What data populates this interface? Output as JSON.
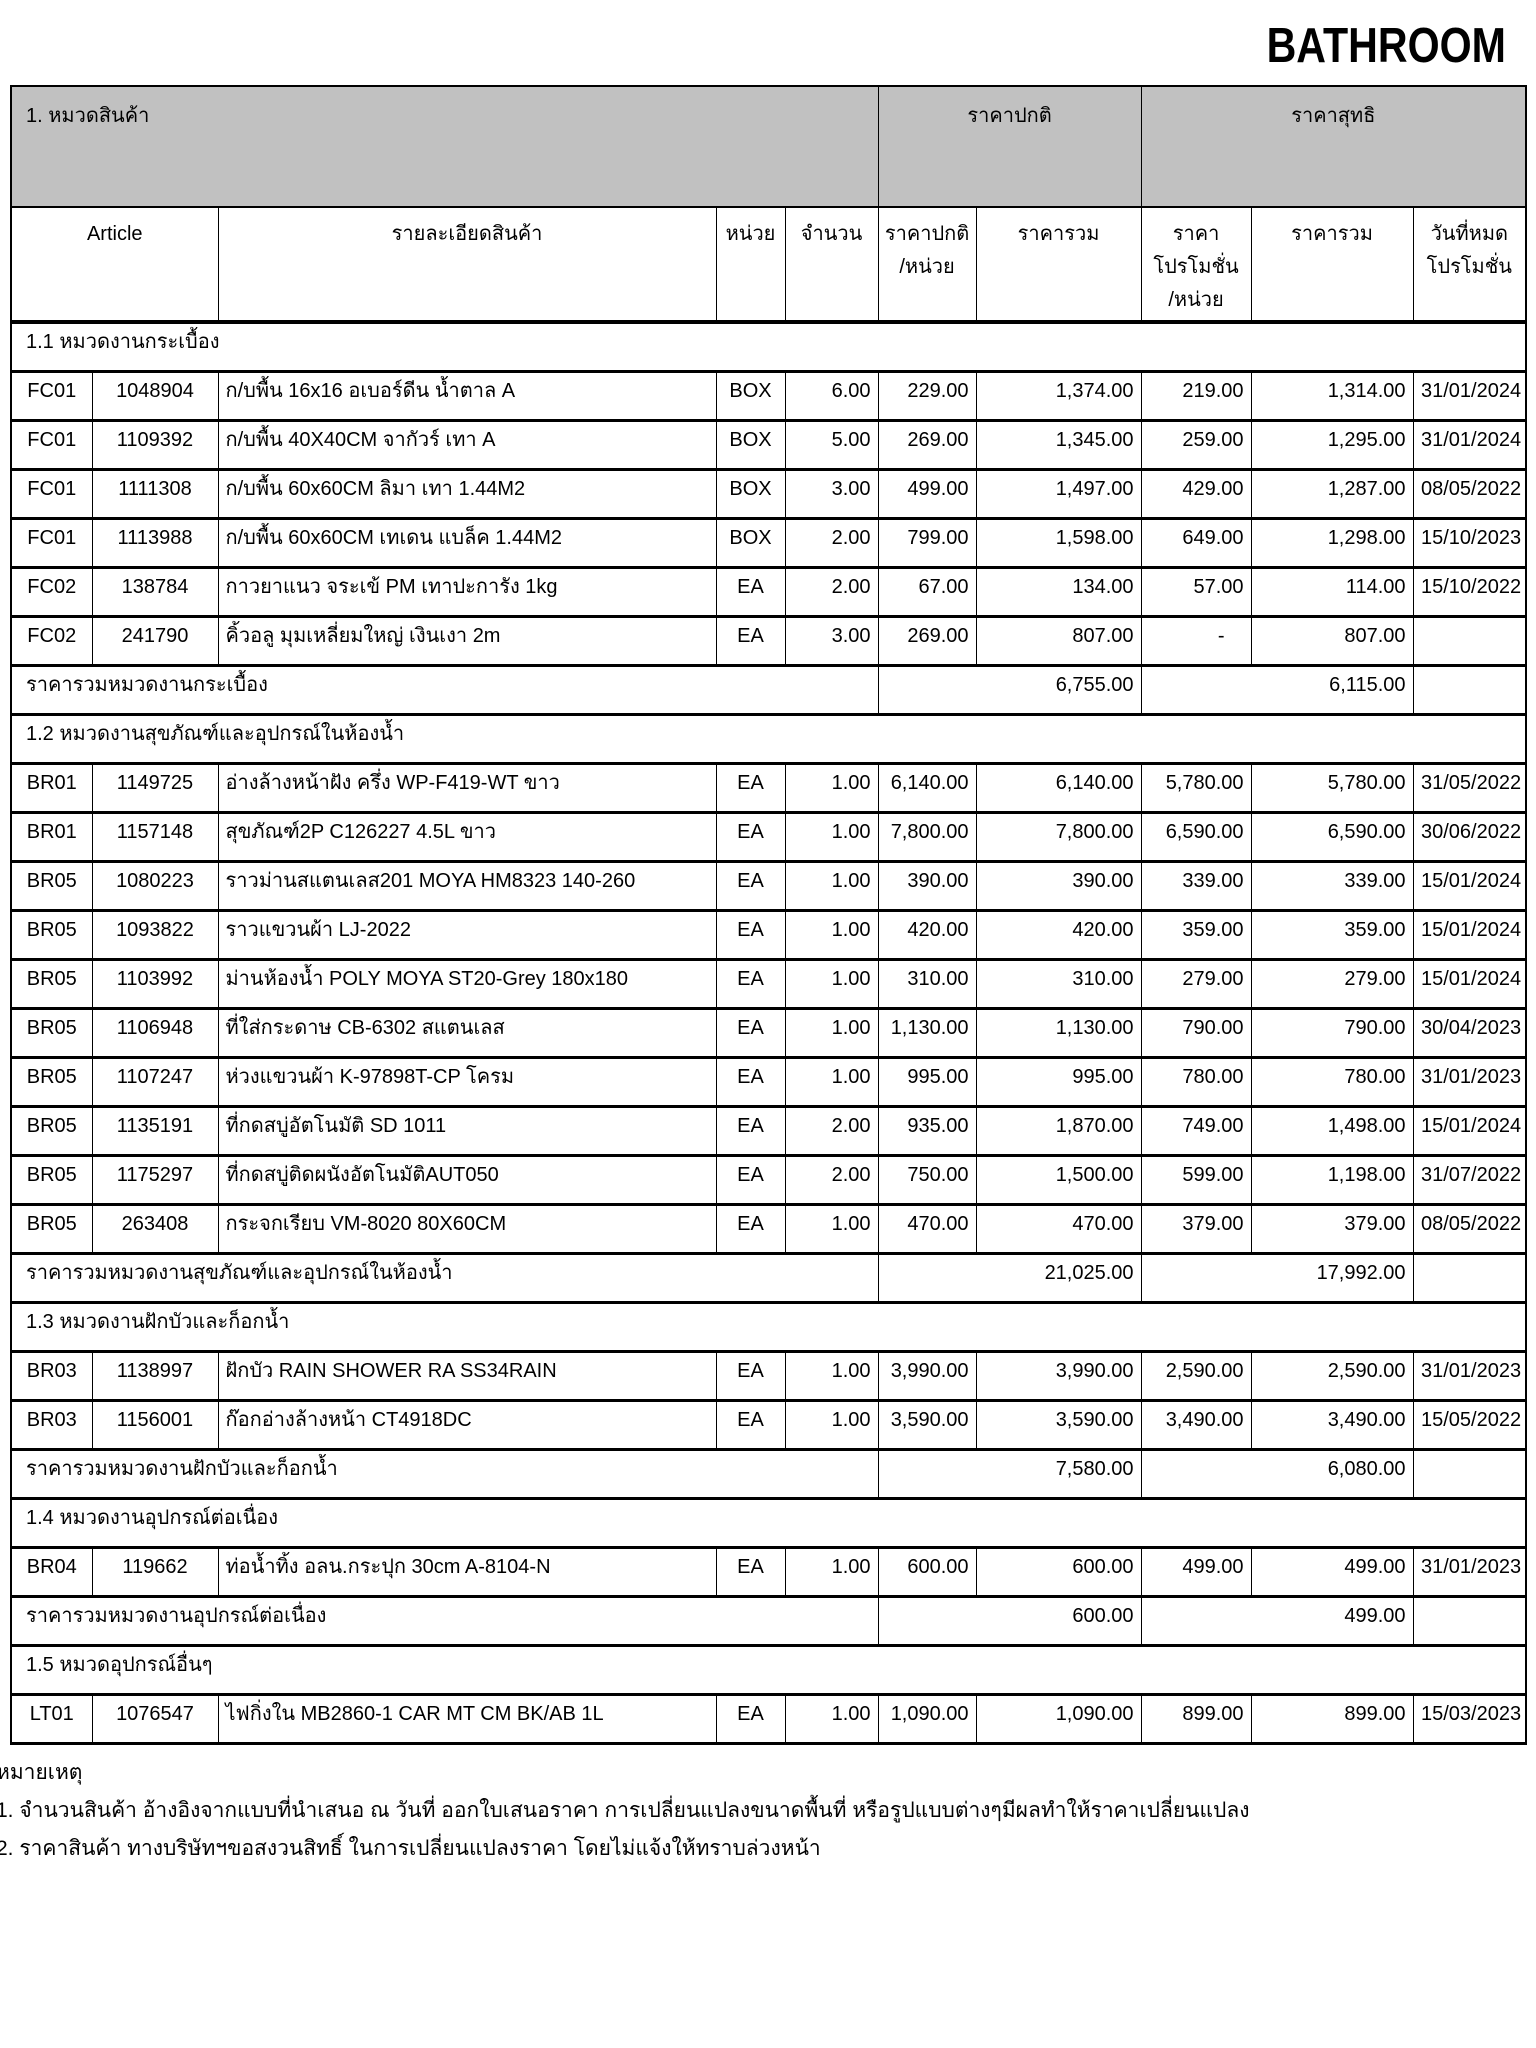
{
  "page_title": "BATHROOM",
  "table": {
    "group_header": {
      "category": "1. หมวดสินค้า",
      "normal_price": "ราคาปกติ",
      "net_price": "ราคาสุทธิ"
    },
    "columns": [
      "Article",
      "รายละเอียดสินค้า",
      "หน่วย",
      "จำนวน",
      "ราคาปกติ\n/หน่วย",
      "ราคารวม",
      "ราคา\nโปรโมชั่น\n/หน่วย",
      "ราคารวม",
      "วันที่หมด\nโปรโมชั่น"
    ],
    "sections": [
      {
        "title": "1.1 หมวดงานกระเบื้อง",
        "rows": [
          [
            "FC01",
            "1048904",
            "ก/บพื้น 16x16 อเบอร์ดีน น้ำตาล A",
            "BOX",
            "6.00",
            "229.00",
            "1,374.00",
            "219.00",
            "1,314.00",
            "31/01/2024"
          ],
          [
            "FC01",
            "1109392",
            "ก/บพื้น 40X40CM จากัวร์ เทา A",
            "BOX",
            "5.00",
            "269.00",
            "1,345.00",
            "259.00",
            "1,295.00",
            "31/01/2024"
          ],
          [
            "FC01",
            "1111308",
            "ก/บพื้น 60x60CM ลิมา เทา 1.44M2",
            "BOX",
            "3.00",
            "499.00",
            "1,497.00",
            "429.00",
            "1,287.00",
            "08/05/2022"
          ],
          [
            "FC01",
            "1113988",
            "ก/บพื้น 60x60CM เทเดน แบล็ค 1.44M2",
            "BOX",
            "2.00",
            "799.00",
            "1,598.00",
            "649.00",
            "1,298.00",
            "15/10/2023"
          ],
          [
            "FC02",
            "138784",
            "กาวยาแนว จระเข้ PM เทาปะการัง 1kg",
            "EA",
            "2.00",
            "67.00",
            "134.00",
            "57.00",
            "114.00",
            "15/10/2022"
          ],
          [
            "FC02",
            "241790",
            "คิ้วอลู มุมเหลี่ยมใหญ่ เงินเงา 2m",
            "EA",
            "3.00",
            "269.00",
            "807.00",
            "-",
            "807.00",
            ""
          ]
        ],
        "summary": {
          "label": "ราคารวมหมวดงานกระเบื้อง",
          "normal_total": "6,755.00",
          "net_total": "6,115.00"
        }
      },
      {
        "title": "1.2 หมวดงานสุขภัณฑ์และอุปกรณ์ในห้องน้ำ",
        "rows": [
          [
            "BR01",
            "1149725",
            "อ่างล้างหน้าฝัง ครึ่ง WP-F419-WT ขาว",
            "EA",
            "1.00",
            "6,140.00",
            "6,140.00",
            "5,780.00",
            "5,780.00",
            "31/05/2022"
          ],
          [
            "BR01",
            "1157148",
            "สุขภัณฑ์2P C126227 4.5L ขาว",
            "EA",
            "1.00",
            "7,800.00",
            "7,800.00",
            "6,590.00",
            "6,590.00",
            "30/06/2022"
          ],
          [
            "BR05",
            "1080223",
            "ราวม่านสแตนเลส201 MOYA HM8323 140-260",
            "EA",
            "1.00",
            "390.00",
            "390.00",
            "339.00",
            "339.00",
            "15/01/2024"
          ],
          [
            "BR05",
            "1093822",
            "ราวแขวนผ้า LJ-2022",
            "EA",
            "1.00",
            "420.00",
            "420.00",
            "359.00",
            "359.00",
            "15/01/2024"
          ],
          [
            "BR05",
            "1103992",
            "ม่านห้องน้ำ POLY MOYA ST20-Grey 180x180",
            "EA",
            "1.00",
            "310.00",
            "310.00",
            "279.00",
            "279.00",
            "15/01/2024"
          ],
          [
            "BR05",
            "1106948",
            "ที่ใส่กระดาษ CB-6302 สแตนเลส",
            "EA",
            "1.00",
            "1,130.00",
            "1,130.00",
            "790.00",
            "790.00",
            "30/04/2023"
          ],
          [
            "BR05",
            "1107247",
            "ห่วงแขวนผ้า K-97898T-CP  โครม",
            "EA",
            "1.00",
            "995.00",
            "995.00",
            "780.00",
            "780.00",
            "31/01/2023"
          ],
          [
            "BR05",
            "1135191",
            "ที่กดสบู่อัตโนมัติ SD 1011",
            "EA",
            "2.00",
            "935.00",
            "1,870.00",
            "749.00",
            "1,498.00",
            "15/01/2024"
          ],
          [
            "BR05",
            "1175297",
            "ที่กดสบู่ติดผนังอัตโนมัติAUT050",
            "EA",
            "2.00",
            "750.00",
            "1,500.00",
            "599.00",
            "1,198.00",
            "31/07/2022"
          ],
          [
            "BR05",
            "263408",
            "กระจกเรียบ VM-8020 80X60CM",
            "EA",
            "1.00",
            "470.00",
            "470.00",
            "379.00",
            "379.00",
            "08/05/2022"
          ]
        ],
        "summary": {
          "label": "ราคารวมหมวดงานสุขภัณฑ์และอุปกรณ์ในห้องน้ำ",
          "normal_total": "21,025.00",
          "net_total": "17,992.00"
        }
      },
      {
        "title": "1.3 หมวดงานฝักบัวและก็อกน้ำ",
        "rows": [
          [
            "BR03",
            "1138997",
            "ฝักบัว RAIN SHOWER  RA SS34RAIN",
            "EA",
            "1.00",
            "3,990.00",
            "3,990.00",
            "2,590.00",
            "2,590.00",
            "31/01/2023"
          ],
          [
            "BR03",
            "1156001",
            "ก๊อกอ่างล้างหน้า CT4918DC",
            "EA",
            "1.00",
            "3,590.00",
            "3,590.00",
            "3,490.00",
            "3,490.00",
            "15/05/2022"
          ]
        ],
        "summary": {
          "label": "ราคารวมหมวดงานฝักบัวและก็อกน้ำ",
          "normal_total": "7,580.00",
          "net_total": "6,080.00"
        }
      },
      {
        "title": "1.4 หมวดงานอุปกรณ์ต่อเนื่อง",
        "rows": [
          [
            "BR04",
            "119662",
            "ท่อน้ำทิ้ง อลน.กระปุก 30cm A-8104-N",
            "EA",
            "1.00",
            "600.00",
            "600.00",
            "499.00",
            "499.00",
            "31/01/2023"
          ]
        ],
        "summary": {
          "label": "ราคารวมหมวดงานอุปกรณ์ต่อเนื่อง",
          "normal_total": "600.00",
          "net_total": "499.00"
        }
      },
      {
        "title": "1.5 หมวดอุปกรณ์อื่นๆ",
        "rows": [
          [
            "LT01",
            "1076547",
            "ไฟกิ่งใน MB2860-1 CAR MT CM BK/AB 1L",
            "EA",
            "1.00",
            "1,090.00",
            "1,090.00",
            "899.00",
            "899.00",
            "15/03/2023"
          ]
        ],
        "summary": null
      }
    ]
  },
  "notes": {
    "heading": "หมายเหตุ",
    "lines": [
      "1. จำนวนสินค้า อ้างอิงจากแบบที่นำเสนอ ณ วันที่ ออกใบเสนอราคา การเปลี่ยนแปลงขนาดพื้นที่ หรือรูปแบบต่างๆมีผลทำให้ราคาเปลี่ยนแปลง",
      "2. ราคาสินค้า ทางบริษัทฯขอสงวนสิทธิ์ ในการเปลี่ยนแปลงราคา โดยไม่แจ้งให้ทราบล่วงหน้า"
    ]
  }
}
